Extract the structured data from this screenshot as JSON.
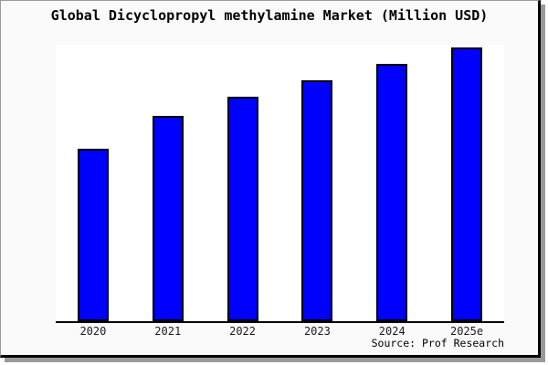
{
  "page": {
    "title": "Global Dicyclopropyl methylamine Market (Million USD)",
    "source": "Source: Prof Research"
  },
  "colors": {
    "bar": "#0000ff",
    "bar_border": "#000000",
    "axis": "#000000",
    "page_bg": "#fafafa",
    "plot_bg": "#ffffff",
    "shadow": "#9a9a9a"
  },
  "chart_data": {
    "type": "bar",
    "title": "Global Dicyclopropyl methylamine Market (Million USD)",
    "categories": [
      "2020",
      "2021",
      "2022",
      "2023",
      "2024",
      "2025e"
    ],
    "values": [
      63,
      75,
      82,
      88,
      94,
      100
    ],
    "values_note": "no numeric y-axis shown; values are estimated relative bar heights with 2025e = 100",
    "xlabel": "",
    "ylabel": "",
    "ylim": [
      0,
      100
    ],
    "y_axis_visible": false,
    "grid": false,
    "legend": false,
    "source": "Source: Prof Research"
  }
}
